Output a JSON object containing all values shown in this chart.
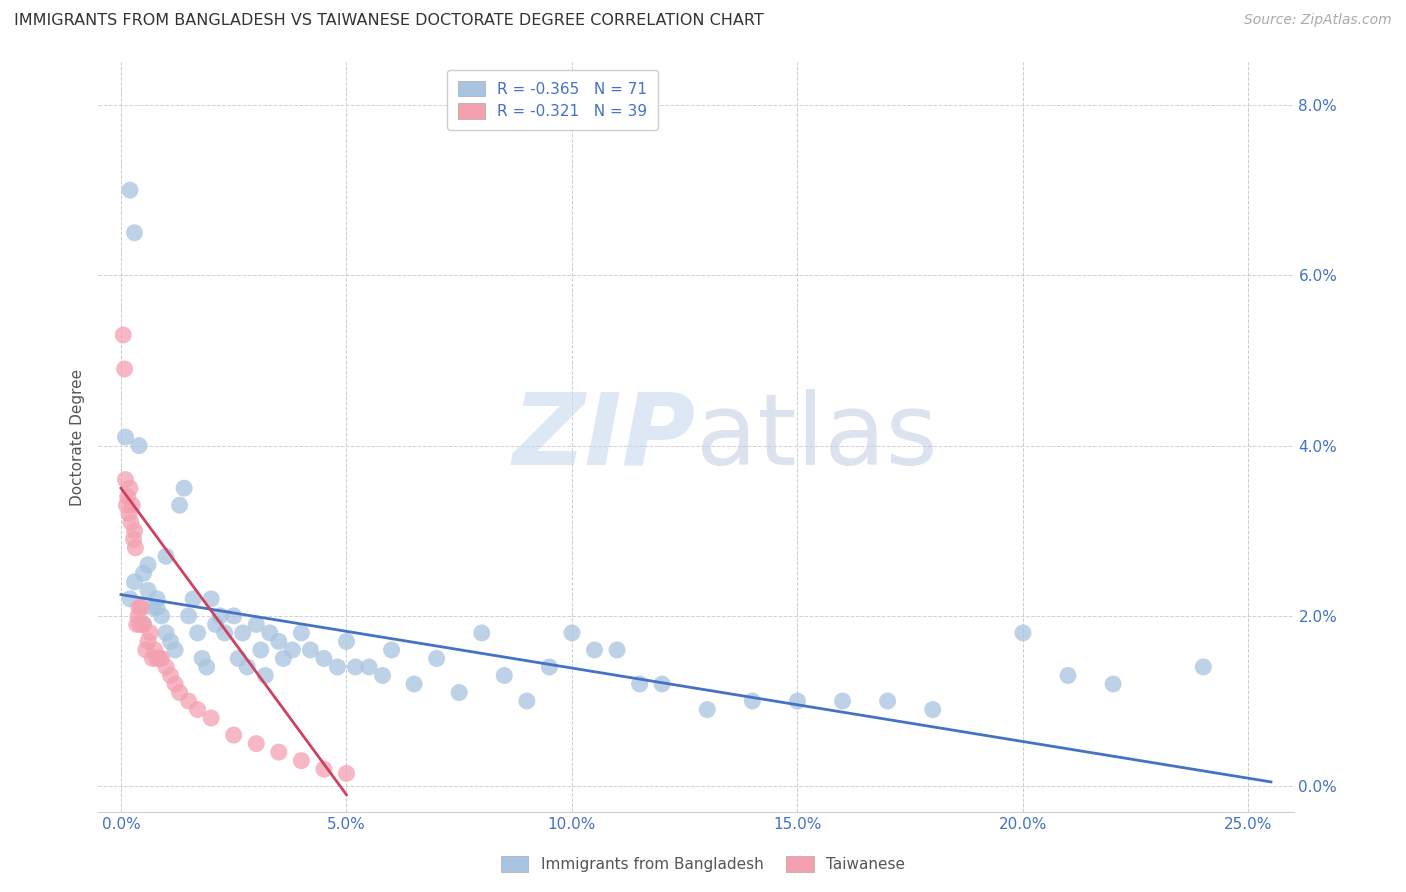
{
  "title": "IMMIGRANTS FROM BANGLADESH VS TAIWANESE DOCTORATE DEGREE CORRELATION CHART",
  "source": "Source: ZipAtlas.com",
  "ylabel": "Doctorate Degree",
  "xlabel_ticks": [
    "0.0%",
    "5.0%",
    "10.0%",
    "15.0%",
    "20.0%",
    "25.0%"
  ],
  "xlabel_vals": [
    0.0,
    5.0,
    10.0,
    15.0,
    20.0,
    25.0
  ],
  "ylabel_ticks_right": [
    "8.0%",
    "6.0%",
    "4.0%",
    "2.0%",
    "0.0%"
  ],
  "ylabel_vals": [
    0.0,
    2.0,
    4.0,
    6.0,
    8.0
  ],
  "xlim": [
    -0.5,
    26.0
  ],
  "ylim": [
    -0.3,
    8.5
  ],
  "blue_R": -0.365,
  "blue_N": 71,
  "pink_R": -0.321,
  "pink_N": 39,
  "legend_label_blue": "Immigrants from Bangladesh",
  "legend_label_pink": "Taiwanese",
  "blue_color": "#a8c4e0",
  "pink_color": "#f4a0b0",
  "blue_line_color": "#4472c4",
  "pink_line_color": "#d04060",
  "watermark_zip": "ZIP",
  "watermark_atlas": "atlas",
  "blue_x": [
    0.2,
    0.3,
    0.5,
    0.6,
    0.8,
    0.9,
    1.0,
    1.1,
    1.2,
    1.3,
    1.4,
    1.5,
    1.6,
    1.7,
    1.8,
    1.9,
    2.0,
    2.1,
    2.2,
    2.3,
    2.5,
    2.6,
    2.7,
    2.8,
    3.0,
    3.1,
    3.2,
    3.3,
    3.5,
    3.6,
    3.8,
    4.0,
    4.2,
    4.5,
    4.8,
    5.0,
    5.2,
    5.5,
    5.8,
    6.0,
    6.5,
    7.0,
    7.5,
    8.0,
    8.5,
    9.0,
    9.5,
    10.0,
    10.5,
    11.0,
    11.5,
    12.0,
    13.0,
    14.0,
    15.0,
    16.0,
    17.0,
    18.0,
    20.0,
    21.0,
    22.0,
    24.0,
    0.1,
    0.2,
    0.3,
    0.4,
    0.5,
    0.6,
    0.7,
    0.8,
    1.0
  ],
  "blue_y": [
    2.2,
    2.4,
    1.9,
    2.6,
    2.1,
    2.0,
    1.8,
    1.7,
    1.6,
    3.3,
    3.5,
    2.0,
    2.2,
    1.8,
    1.5,
    1.4,
    2.2,
    1.9,
    2.0,
    1.8,
    2.0,
    1.5,
    1.8,
    1.4,
    1.9,
    1.6,
    1.3,
    1.8,
    1.7,
    1.5,
    1.6,
    1.8,
    1.6,
    1.5,
    1.4,
    1.7,
    1.4,
    1.4,
    1.3,
    1.6,
    1.2,
    1.5,
    1.1,
    1.8,
    1.3,
    1.0,
    1.4,
    1.8,
    1.6,
    1.6,
    1.2,
    1.2,
    0.9,
    1.0,
    1.0,
    1.0,
    1.0,
    0.9,
    1.8,
    1.3,
    1.2,
    1.4,
    4.1,
    7.0,
    6.5,
    4.0,
    2.5,
    2.3,
    2.1,
    2.2,
    2.7
  ],
  "pink_x": [
    0.05,
    0.08,
    0.1,
    0.12,
    0.15,
    0.18,
    0.2,
    0.22,
    0.25,
    0.28,
    0.3,
    0.32,
    0.35,
    0.38,
    0.4,
    0.42,
    0.45,
    0.5,
    0.55,
    0.6,
    0.65,
    0.7,
    0.75,
    0.8,
    0.85,
    0.9,
    1.0,
    1.1,
    1.2,
    1.3,
    1.5,
    1.7,
    2.0,
    2.5,
    3.0,
    3.5,
    4.0,
    4.5,
    5.0
  ],
  "pink_y": [
    5.3,
    4.9,
    3.6,
    3.3,
    3.4,
    3.2,
    3.5,
    3.1,
    3.3,
    2.9,
    3.0,
    2.8,
    1.9,
    2.0,
    2.1,
    1.9,
    2.1,
    1.9,
    1.6,
    1.7,
    1.8,
    1.5,
    1.6,
    1.5,
    1.5,
    1.5,
    1.4,
    1.3,
    1.2,
    1.1,
    1.0,
    0.9,
    0.8,
    0.6,
    0.5,
    0.4,
    0.3,
    0.2,
    0.15
  ]
}
